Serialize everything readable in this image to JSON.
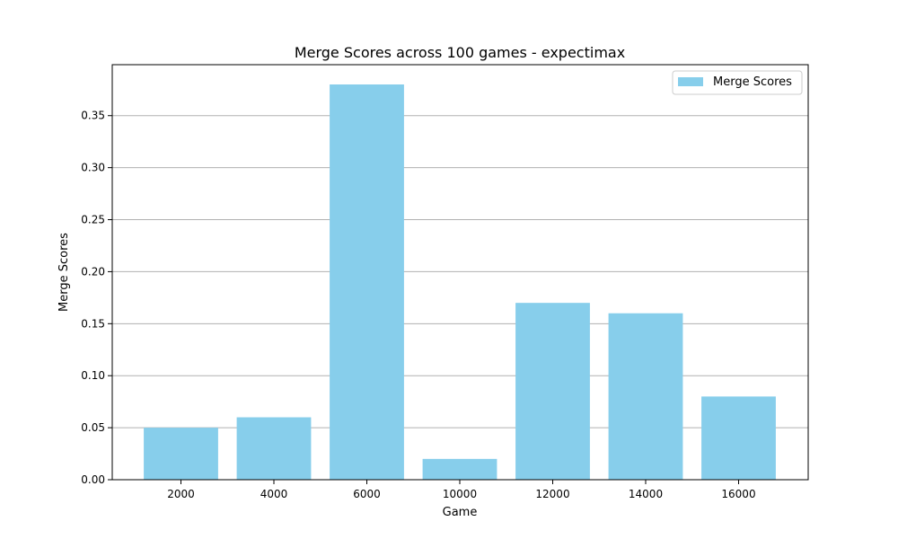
{
  "chart_data": {
    "type": "bar",
    "title": "Merge Scores across 100 games - expectimax",
    "xlabel": "Game",
    "ylabel": "Merge Scores",
    "categories": [
      "2000",
      "4000",
      "6000",
      "10000",
      "12000",
      "14000",
      "16000"
    ],
    "series": [
      {
        "name": "Merge Scores",
        "values": [
          0.05,
          0.06,
          0.38,
          0.02,
          0.17,
          0.16,
          0.08
        ],
        "color": "#87ceeb"
      }
    ],
    "ylim": [
      0,
      0.399
    ],
    "yticks": [
      0.0,
      0.05,
      0.1,
      0.15,
      0.2,
      0.25,
      0.3,
      0.35
    ],
    "ytick_labels": [
      "0.00",
      "0.05",
      "0.10",
      "0.15",
      "0.20",
      "0.25",
      "0.30",
      "0.35"
    ],
    "grid": "horizontal",
    "legend_position": "top-right"
  }
}
